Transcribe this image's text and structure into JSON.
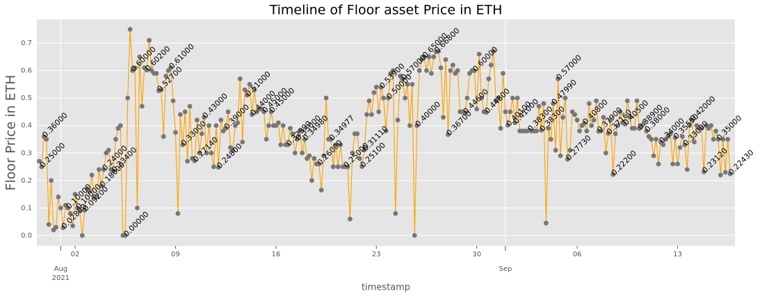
{
  "chart_data": {
    "type": "line",
    "title": "Timeline of Floor asset Price in ETH",
    "xlabel": "timestamp",
    "ylabel": "Floor Price in ETH",
    "color": "#ffa500",
    "marker_color": "#777777",
    "grid": true,
    "xlim": [
      "2021-07-30T08:00",
      "2021-09-17T00:00"
    ],
    "ylim": [
      -0.038,
      0.786
    ],
    "yticks": [
      {
        "value": 0,
        "label": "0.0"
      },
      0.1,
      0.2,
      0.3,
      0.4,
      0.5,
      0.6,
      0.7
    ],
    "xticks": [
      {
        "value": "2021-08-01",
        "label": "Aug\n2021"
      },
      {
        "value": "2021-09-01",
        "label": "Sep"
      }
    ],
    "xticks_minor": [
      {
        "value": "2021-08-02",
        "label": "02"
      },
      {
        "value": "2021-08-09",
        "label": "09"
      },
      {
        "value": "2021-08-16",
        "label": "16"
      },
      {
        "value": "2021-08-23",
        "label": "23"
      },
      {
        "value": "2021-08-30",
        "label": "30"
      },
      {
        "value": "2021-09-06",
        "label": "06"
      },
      {
        "value": "2021-09-13",
        "label": "13"
      }
    ],
    "x": [
      "2021-07-30T12:00",
      "2021-07-30T16:00",
      "2021-07-30T20:00",
      "2021-07-31T00:00",
      "2021-07-31T04:00",
      "2021-07-31T08:00",
      "2021-07-31T12:00",
      "2021-07-31T16:00",
      "2021-07-31T20:00",
      "2021-08-01T00:00",
      "2021-08-01T04:00",
      "2021-08-01T08:00",
      "2021-08-01T12:00",
      "2021-08-01T16:00",
      "2021-08-01T20:00",
      "2021-08-02T00:00",
      "2021-08-02T04:00",
      "2021-08-02T08:00",
      "2021-08-02T12:00",
      "2021-08-02T16:00",
      "2021-08-02T20:00",
      "2021-08-03T00:00",
      "2021-08-03T04:00",
      "2021-08-03T08:00",
      "2021-08-03T12:00",
      "2021-08-03T16:00",
      "2021-08-03T20:00",
      "2021-08-04T00:00",
      "2021-08-04T04:00",
      "2021-08-04T08:00",
      "2021-08-04T12:00",
      "2021-08-04T16:00",
      "2021-08-04T20:00",
      "2021-08-05T00:00",
      "2021-08-05T04:00",
      "2021-08-05T08:00",
      "2021-08-05T12:00",
      "2021-08-05T16:00",
      "2021-08-05T20:00",
      "2021-08-06T00:00",
      "2021-08-06T04:00",
      "2021-08-06T08:00",
      "2021-08-06T12:00",
      "2021-08-06T16:00",
      "2021-08-06T20:00",
      "2021-08-07T00:00",
      "2021-08-07T04:00",
      "2021-08-07T08:00",
      "2021-08-07T12:00",
      "2021-08-07T16:00",
      "2021-08-07T20:00",
      "2021-08-08T00:00",
      "2021-08-08T04:00",
      "2021-08-08T08:00",
      "2021-08-08T12:00",
      "2021-08-08T16:00",
      "2021-08-08T20:00",
      "2021-08-09T00:00",
      "2021-08-09T04:00",
      "2021-08-09T08:00",
      "2021-08-09T12:00",
      "2021-08-09T16:00",
      "2021-08-09T20:00",
      "2021-08-10T00:00",
      "2021-08-10T04:00",
      "2021-08-10T08:00",
      "2021-08-10T12:00",
      "2021-08-10T16:00",
      "2021-08-10T20:00",
      "2021-08-11T00:00",
      "2021-08-11T04:00",
      "2021-08-11T08:00",
      "2021-08-11T12:00",
      "2021-08-11T16:00",
      "2021-08-11T20:00",
      "2021-08-12T00:00",
      "2021-08-12T04:00",
      "2021-08-12T08:00",
      "2021-08-12T12:00",
      "2021-08-12T16:00",
      "2021-08-12T20:00",
      "2021-08-13T00:00",
      "2021-08-13T04:00",
      "2021-08-13T08:00",
      "2021-08-13T12:00",
      "2021-08-13T16:00",
      "2021-08-13T20:00",
      "2021-08-14T00:00",
      "2021-08-14T04:00",
      "2021-08-14T08:00",
      "2021-08-14T12:00",
      "2021-08-14T16:00",
      "2021-08-14T20:00",
      "2021-08-15T00:00",
      "2021-08-15T04:00",
      "2021-08-15T08:00",
      "2021-08-15T12:00",
      "2021-08-15T16:00",
      "2021-08-15T20:00",
      "2021-08-16T00:00",
      "2021-08-16T04:00",
      "2021-08-16T08:00",
      "2021-08-16T12:00",
      "2021-08-16T16:00",
      "2021-08-16T20:00",
      "2021-08-17T00:00",
      "2021-08-17T04:00",
      "2021-08-17T08:00",
      "2021-08-17T12:00",
      "2021-08-17T16:00",
      "2021-08-17T20:00",
      "2021-08-18T00:00",
      "2021-08-18T04:00",
      "2021-08-18T08:00",
      "2021-08-18T12:00",
      "2021-08-18T16:00",
      "2021-08-18T20:00",
      "2021-08-19T00:00",
      "2021-08-19T04:00",
      "2021-08-19T08:00",
      "2021-08-19T12:00",
      "2021-08-19T16:00",
      "2021-08-19T20:00",
      "2021-08-20T00:00",
      "2021-08-20T04:00",
      "2021-08-20T08:00",
      "2021-08-20T12:00",
      "2021-08-20T16:00",
      "2021-08-20T20:00",
      "2021-08-21T00:00",
      "2021-08-21T04:00",
      "2021-08-21T08:00",
      "2021-08-21T12:00",
      "2021-08-21T16:00",
      "2021-08-21T20:00",
      "2021-08-22T00:00",
      "2021-08-22T04:00",
      "2021-08-22T08:00",
      "2021-08-22T12:00",
      "2021-08-22T16:00",
      "2021-08-22T20:00",
      "2021-08-23T00:00",
      "2021-08-23T04:00",
      "2021-08-23T08:00",
      "2021-08-23T12:00",
      "2021-08-23T16:00",
      "2021-08-23T20:00",
      "2021-08-24T00:00",
      "2021-08-24T04:00",
      "2021-08-24T08:00",
      "2021-08-24T12:00",
      "2021-08-24T16:00",
      "2021-08-24T20:00",
      "2021-08-25T00:00",
      "2021-08-25T04:00",
      "2021-08-25T08:00",
      "2021-08-25T12:00",
      "2021-08-25T16:00",
      "2021-08-25T20:00",
      "2021-08-26T00:00",
      "2021-08-26T04:00",
      "2021-08-26T08:00",
      "2021-08-26T12:00",
      "2021-08-26T16:00",
      "2021-08-26T20:00",
      "2021-08-27T00:00",
      "2021-08-27T04:00",
      "2021-08-27T08:00",
      "2021-08-27T12:00",
      "2021-08-27T16:00",
      "2021-08-27T20:00",
      "2021-08-28T00:00",
      "2021-08-28T04:00",
      "2021-08-28T08:00",
      "2021-08-28T12:00",
      "2021-08-28T16:00",
      "2021-08-28T20:00",
      "2021-08-29T00:00",
      "2021-08-29T04:00",
      "2021-08-29T08:00",
      "2021-08-29T12:00",
      "2021-08-29T16:00",
      "2021-08-29T20:00",
      "2021-08-30T00:00",
      "2021-08-30T04:00",
      "2021-08-30T08:00",
      "2021-08-30T12:00",
      "2021-08-30T16:00",
      "2021-08-30T20:00",
      "2021-08-31T00:00",
      "2021-08-31T04:00",
      "2021-08-31T08:00",
      "2021-08-31T12:00",
      "2021-08-31T16:00",
      "2021-08-31T20:00",
      "2021-09-01T00:00",
      "2021-09-01T04:00",
      "2021-09-01T08:00",
      "2021-09-01T12:00",
      "2021-09-01T16:00",
      "2021-09-01T20:00",
      "2021-09-02T00:00",
      "2021-09-02T04:00",
      "2021-09-02T08:00",
      "2021-09-02T12:00",
      "2021-09-02T16:00",
      "2021-09-02T20:00",
      "2021-09-03T00:00",
      "2021-09-03T04:00",
      "2021-09-03T08:00",
      "2021-09-03T12:00",
      "2021-09-03T16:00",
      "2021-09-03T20:00",
      "2021-09-04T00:00",
      "2021-09-04T04:00",
      "2021-09-04T08:00",
      "2021-09-04T12:00",
      "2021-09-04T16:00",
      "2021-09-04T20:00",
      "2021-09-05T00:00",
      "2021-09-05T04:00",
      "2021-09-05T08:00",
      "2021-09-05T12:00",
      "2021-09-05T16:00",
      "2021-09-05T20:00",
      "2021-09-06T00:00",
      "2021-09-06T04:00",
      "2021-09-06T08:00",
      "2021-09-06T12:00",
      "2021-09-06T16:00",
      "2021-09-06T20:00",
      "2021-09-07T00:00",
      "2021-09-07T04:00",
      "2021-09-07T08:00",
      "2021-09-07T12:00",
      "2021-09-07T16:00",
      "2021-09-07T20:00",
      "2021-09-08T00:00",
      "2021-09-08T04:00",
      "2021-09-08T08:00",
      "2021-09-08T12:00",
      "2021-09-08T16:00",
      "2021-09-08T20:00",
      "2021-09-09T00:00",
      "2021-09-09T04:00",
      "2021-09-09T08:00",
      "2021-09-09T12:00",
      "2021-09-09T16:00",
      "2021-09-09T20:00",
      "2021-09-10T00:00",
      "2021-09-10T04:00",
      "2021-09-10T08:00",
      "2021-09-10T12:00",
      "2021-09-10T16:00",
      "2021-09-10T20:00",
      "2021-09-11T00:00",
      "2021-09-11T04:00",
      "2021-09-11T08:00",
      "2021-09-11T12:00",
      "2021-09-11T16:00",
      "2021-09-11T20:00",
      "2021-09-12T00:00",
      "2021-09-12T04:00",
      "2021-09-12T08:00",
      "2021-09-12T12:00",
      "2021-09-12T16:00",
      "2021-09-12T20:00",
      "2021-09-13T00:00",
      "2021-09-13T04:00",
      "2021-09-13T08:00",
      "2021-09-13T12:00",
      "2021-09-13T16:00",
      "2021-09-13T20:00",
      "2021-09-14T00:00",
      "2021-09-14T04:00",
      "2021-09-14T08:00",
      "2021-09-14T12:00",
      "2021-09-14T16:00",
      "2021-09-14T20:00",
      "2021-09-15T00:00",
      "2021-09-15T04:00",
      "2021-09-15T08:00",
      "2021-09-15T12:00",
      "2021-09-15T16:00",
      "2021-09-15T20:00",
      "2021-09-16T00:00",
      "2021-09-16T04:00",
      "2021-09-16T08:00",
      "2021-09-16T12:00",
      "2021-09-16T16:00"
    ],
    "values": [
      0.27,
      0.25,
      0.36,
      0.35,
      0.04,
      0.2,
      0.02,
      0.03,
      0.14,
      0.1,
      0.028,
      0.11,
      0.1,
      0.08,
      0.035,
      0.15,
      0.1,
      0.09,
      0.0,
      0.092,
      0.17,
      0.16,
      0.22,
      0.14,
      0.14,
      0.24,
      0.18,
      0.24,
      0.3,
      0.31,
      0.24,
      0.234,
      0.35,
      0.39,
      0.4,
      0.0,
      0.0,
      0.5,
      0.75,
      0.6,
      0.61,
      0.1,
      0.65,
      0.47,
      0.61,
      0.602,
      0.71,
      0.6,
      0.59,
      0.59,
      0.527,
      0.53,
      0.36,
      0.58,
      0.6,
      0.61,
      0.49,
      0.375,
      0.08,
      0.44,
      0.33,
      0.45,
      0.27,
      0.47,
      0.28,
      0.2714,
      0.42,
      0.3,
      0.37,
      0.43,
      0.3,
      0.4,
      0.3,
      0.25,
      0.4,
      0.248,
      0.42,
      0.38,
      0.39,
      0.45,
      0.32,
      0.31,
      0.4,
      0.41,
      0.57,
      0.34,
      0.53,
      0.51,
      0.55,
      0.44,
      0.53,
      0.45,
      0.46,
      0.46,
      0.45,
      0.35,
      0.4,
      0.45,
      0.4,
      0.4,
      0.41,
      0.33,
      0.4,
      0.33,
      0.3299,
      0.39,
      0.37,
      0.3,
      0.35,
      0.38,
      0.3,
      0.3498,
      0.28,
      0.29,
      0.2,
      0.28,
      0.26,
      0.26,
      0.165,
      0.29,
      0.5,
      0.35,
      0.34977,
      0.25,
      0.33,
      0.25,
      0.33,
      0.25,
      0.25,
      0.25,
      0.06,
      0.3,
      0.37,
      0.37,
      0.28,
      0.251,
      0.3111,
      0.44,
      0.49,
      0.44,
      0.52,
      0.54,
      0.45,
      0.539,
      0.5,
      0.38,
      0.5,
      0.59,
      0.6,
      0.08,
      0.42,
      0.58,
      0.57,
      0.5,
      0.55,
      0.4,
      0.55,
      0.0,
      0.4,
      0.6,
      0.64,
      0.65,
      0.6,
      0.65,
      0.59,
      0.65,
      0.668,
      0.67,
      0.61,
      0.43,
      0.64,
      0.367,
      0.6,
      0.62,
      0.59,
      0.6,
      0.45,
      0.45,
      0.446,
      0.5,
      0.59,
      0.6,
      0.6,
      0.46,
      0.66,
      0.5,
      0.45,
      0.448,
      0.57,
      0.62,
      0.67,
      0.49,
      0.5,
      0.39,
      0.59,
      0.45,
      0.401,
      0.45,
      0.5,
      0.41,
      0.5,
      0.38,
      0.38,
      0.38,
      0.38,
      0.383,
      0.38,
      0.38,
      0.38,
      0.47,
      0.383,
      0.48,
      0.045,
      0.39,
      0.35,
      0.4799,
      0.31,
      0.57,
      0.29,
      0.43,
      0.5,
      0.2773,
      0.31,
      0.45,
      0.44,
      0.42,
      0.38,
      0.4,
      0.408,
      0.38,
      0.48,
      0.4,
      0.42,
      0.49,
      0.379,
      0.38,
      0.43,
      0.3,
      0.3716,
      0.42,
      0.222,
      0.37,
      0.4,
      0.45,
      0.41,
      0.405,
      0.49,
      0.43,
      0.39,
      0.39,
      0.49,
      0.389,
      0.4,
      0.41,
      0.38,
      0.36,
      0.35,
      0.29,
      0.35,
      0.26,
      0.34,
      0.33,
      0.35,
      0.36,
      0.37,
      0.26,
      0.3555,
      0.26,
      0.32,
      0.36,
      0.33,
      0.24,
      0.4,
      0.42,
      0.34,
      0.4,
      0.39,
      0.39,
      0.2312,
      0.4,
      0.39,
      0.4,
      0.35,
      0.38,
      0.35,
      0.22,
      0.35,
      0.23,
      0.35,
      0.2243
    ],
    "value_labels": [
      null,
      "0.25000",
      "0.36000",
      null,
      null,
      null,
      null,
      null,
      null,
      null,
      "0.02800",
      null,
      "0.10000",
      null,
      null,
      null,
      "0.10000",
      null,
      null,
      "0.09200",
      null,
      null,
      null,
      null,
      null,
      null,
      "0.18000",
      "0.24000",
      null,
      null,
      null,
      "0.23400",
      null,
      null,
      null,
      null,
      "0.00000",
      null,
      null,
      "0.60000",
      null,
      null,
      null,
      null,
      null,
      "0.60200",
      null,
      null,
      null,
      null,
      "0.52700",
      null,
      null,
      null,
      null,
      "0.61000",
      null,
      null,
      null,
      null,
      "0.33000",
      null,
      null,
      null,
      null,
      "0.27140",
      null,
      null,
      null,
      "0.43000",
      null,
      null,
      null,
      null,
      null,
      "0.24800",
      null,
      null,
      "0.39000",
      null,
      null,
      null,
      null,
      null,
      null,
      null,
      null,
      "0.51000",
      null,
      "0.44000",
      null,
      null,
      null,
      null,
      "0.45000",
      null,
      null,
      "0.45000",
      null,
      null,
      null,
      null,
      null,
      null,
      "0.32990",
      null,
      null,
      null,
      "0.35000",
      null,
      null,
      "0.34980",
      null,
      null,
      null,
      null,
      null,
      "0.26000",
      null,
      null,
      null,
      null,
      "0.34977",
      null,
      null,
      null,
      null,
      null,
      "0.25000",
      null,
      null,
      null,
      null,
      null,
      null,
      "0.25100",
      "0.31110",
      null,
      null,
      null,
      null,
      null,
      null,
      "0.53900",
      null,
      null,
      "0.50000",
      null,
      null,
      null,
      null,
      null,
      "0.57000",
      null,
      null,
      null,
      null,
      null,
      "0.40000",
      null,
      null,
      "0.65000",
      null,
      null,
      null,
      null,
      "0.66800",
      null,
      null,
      null,
      null,
      "0.36700",
      null,
      null,
      null,
      null,
      null,
      null,
      "0.44600",
      null,
      null,
      null,
      "0.60000",
      null,
      null,
      null,
      null,
      "0.44800",
      null,
      null,
      null,
      null,
      null,
      null,
      null,
      null,
      "0.40100",
      null,
      null,
      "0.41000",
      null,
      null,
      null,
      null,
      null,
      "0.38300",
      null,
      null,
      null,
      null,
      "0.38300",
      null,
      null,
      null,
      null,
      "0.47990",
      null,
      "0.57000",
      null,
      null,
      null,
      "0.27730",
      null,
      null,
      null,
      null,
      null,
      null,
      "0.40800",
      null,
      null,
      null,
      null,
      null,
      "0.37900",
      null,
      null,
      null,
      "0.37160",
      null,
      "0.22200",
      null,
      null,
      null,
      null,
      "0.40500",
      null,
      null,
      null,
      null,
      null,
      "0.38900",
      null,
      null,
      "0.38000",
      null,
      null,
      null,
      null,
      null,
      "0.34000",
      null,
      null,
      null,
      null,
      null,
      "0.35550",
      null,
      null,
      null,
      "0.33000",
      null,
      null,
      "0.42000",
      null,
      null,
      null,
      null,
      "0.23120",
      null,
      null,
      null,
      null,
      null,
      "0.35000",
      null,
      null,
      null,
      null,
      "0.22430"
    ]
  }
}
